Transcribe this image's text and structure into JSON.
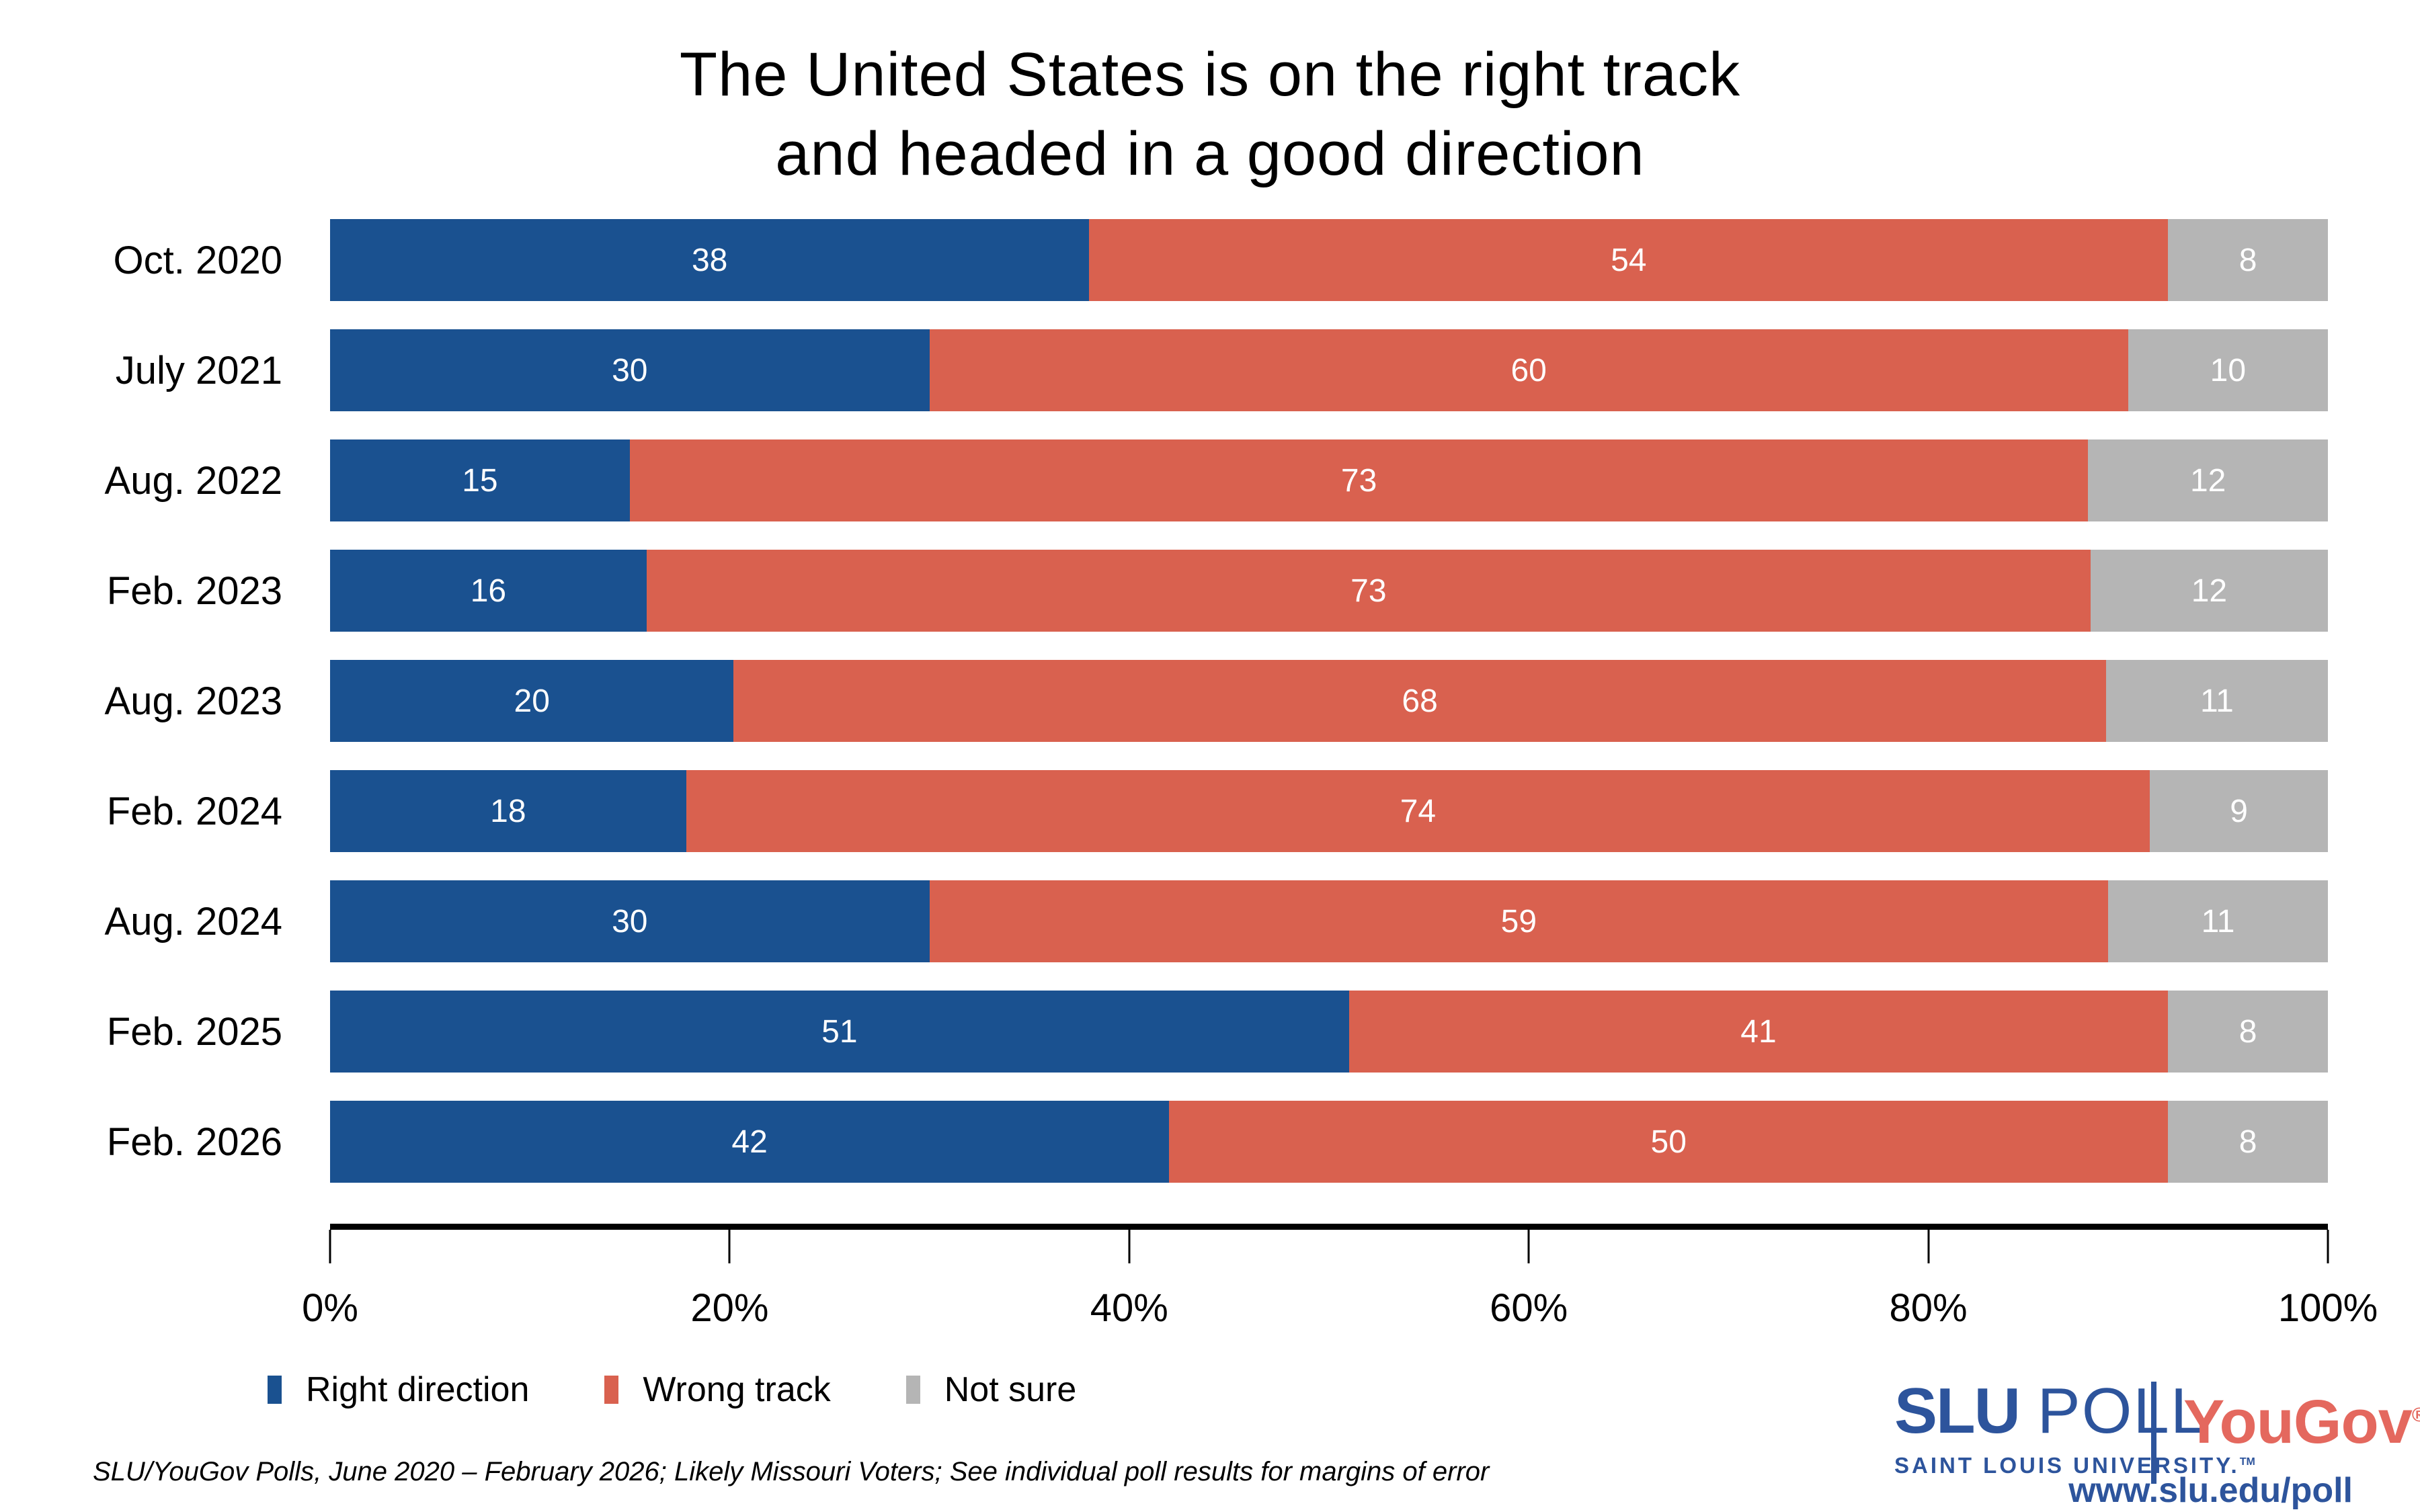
{
  "title": {
    "line1": "The United States is on the right track",
    "line2": "and headed in a good direction"
  },
  "chart_data": {
    "type": "bar",
    "orientation": "horizontal",
    "stacked": true,
    "grid": false,
    "legend_position": "bottom-left",
    "value_labels": "white, centered in each segment",
    "categories": [
      "Oct. 2020",
      "July 2021",
      "Aug. 2022",
      "Feb. 2023",
      "Aug. 2023",
      "Feb. 2024",
      "Aug. 2024",
      "Feb. 2025",
      "Feb. 2026"
    ],
    "series": [
      {
        "name": "Right direction",
        "color": "#1a5190",
        "values": [
          38,
          30,
          15,
          16,
          20,
          18,
          30,
          51,
          42
        ]
      },
      {
        "name": "Wrong track",
        "color": "#d9614f",
        "values": [
          54,
          60,
          73,
          73,
          68,
          74,
          59,
          41,
          50
        ]
      },
      {
        "name": "Not sure",
        "color": "#b5b5b5",
        "values": [
          8,
          10,
          12,
          12,
          11,
          9,
          11,
          8,
          8
        ]
      }
    ],
    "x_axis": {
      "range": [
        0,
        100
      ],
      "tick_labels": [
        "0%",
        "20%",
        "40%",
        "60%",
        "80%",
        "100%"
      ],
      "axis_color": "#000000"
    }
  },
  "footer": {
    "source_note": "SLU/YouGov Polls, June 2020 – February 2026; Likely Missouri Voters; See individual poll results for margins of error"
  },
  "branding": {
    "slu": "SLU",
    "poll": "POLL",
    "slu_subtitle": "SAINT LOUIS UNIVERSITY.",
    "slu_subtitle_tm": "TM",
    "slu_color": "#2d549c",
    "yougov": "YouGov",
    "yougov_reg": "®",
    "yougov_color": "#e4685e",
    "url": "www.slu.edu/poll"
  }
}
